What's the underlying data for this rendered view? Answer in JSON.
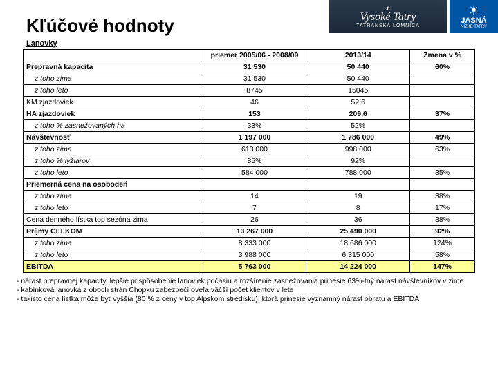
{
  "title": "Kľúčové hodnoty",
  "subhead": "Lanovky",
  "logos": {
    "vt_brand": "Vysoké Tatry",
    "vt_sub": "TATRANSKÁ LOMNICA",
    "jasna_name": "JASNÁ",
    "jasna_sub": "NÍZKE TATRY"
  },
  "columns": [
    "",
    "priemer 2005/06 - 2008/09",
    "2013/14",
    "Zmena v %"
  ],
  "rows": [
    {
      "label": "Prepravná kapacita",
      "c1": "31 530",
      "c2": "50 440",
      "chg": "60%",
      "bold": true,
      "indent": false,
      "hl": false
    },
    {
      "label": "z toho zima",
      "c1": "31 530",
      "c2": "50 440",
      "chg": "",
      "bold": false,
      "indent": true,
      "hl": false
    },
    {
      "label": "z toho leto",
      "c1": "8745",
      "c2": "15045",
      "chg": "",
      "bold": false,
      "indent": true,
      "hl": false
    },
    {
      "label": "KM zjazdoviek",
      "c1": "46",
      "c2": "52,6",
      "chg": "",
      "bold": false,
      "indent": false,
      "hl": false
    },
    {
      "label": "HA zjazdoviek",
      "c1": "153",
      "c2": "209,6",
      "chg": "37%",
      "bold": true,
      "indent": false,
      "hl": false
    },
    {
      "label": "z toho % zasnežovaných ha",
      "c1": "33%",
      "c2": "52%",
      "chg": "",
      "bold": false,
      "indent": true,
      "hl": false
    },
    {
      "label": "Návštevnosť",
      "c1": "1 197 000",
      "c2": "1 786 000",
      "chg": "49%",
      "bold": true,
      "indent": false,
      "hl": false
    },
    {
      "label": "z toho zima",
      "c1": "613 000",
      "c2": "998 000",
      "chg": "63%",
      "bold": false,
      "indent": true,
      "hl": false
    },
    {
      "label": "z toho % lyžiarov",
      "c1": "85%",
      "c2": "92%",
      "chg": "",
      "bold": false,
      "indent": true,
      "hl": false
    },
    {
      "label": "z toho leto",
      "c1": "584 000",
      "c2": "788 000",
      "chg": "35%",
      "bold": false,
      "indent": true,
      "hl": false
    },
    {
      "label": "Priemerná cena na osobodeň",
      "c1": "",
      "c2": "",
      "chg": "",
      "bold": true,
      "indent": false,
      "hl": false
    },
    {
      "label": "z toho zima",
      "c1": "14",
      "c2": "19",
      "chg": "38%",
      "bold": false,
      "indent": true,
      "hl": false
    },
    {
      "label": "z toho leto",
      "c1": "7",
      "c2": "8",
      "chg": "17%",
      "bold": false,
      "indent": true,
      "hl": false
    },
    {
      "label": "Cena denného lístka top sezóna zima",
      "c1": "26",
      "c2": "36",
      "chg": "38%",
      "bold": false,
      "indent": false,
      "hl": false
    },
    {
      "label": "Príjmy CELKOM",
      "c1": "13 267 000",
      "c2": "25 490 000",
      "chg": "92%",
      "bold": true,
      "indent": false,
      "hl": false
    },
    {
      "label": "z toho zima",
      "c1": "8 333 000",
      "c2": "18 686 000",
      "chg": "124%",
      "bold": false,
      "indent": true,
      "hl": false
    },
    {
      "label": "z toho leto",
      "c1": "3 988 000",
      "c2": "6 315 000",
      "chg": "58%",
      "bold": false,
      "indent": true,
      "hl": false
    },
    {
      "label": "EBITDA",
      "c1": "5 763 000",
      "c2": "14 224 000",
      "chg": "147%",
      "bold": true,
      "indent": false,
      "hl": true
    }
  ],
  "notes": [
    "- nárast prepravnej kapacity, lepšie prispôsobenie lanoviek počasiu a rozšírenie zasnežovania prinesie 63%-tný nárast návštevníkov v zime",
    "- kabínková lanovka z oboch strán Chopku zabezpečí oveľa väčší počet klientov v lete",
    "- takisto cena lístka môže byť vyššia (80 % z ceny v top Alpskom stredisku), ktorá prinesie významný nárast obratu a EBITDA"
  ]
}
